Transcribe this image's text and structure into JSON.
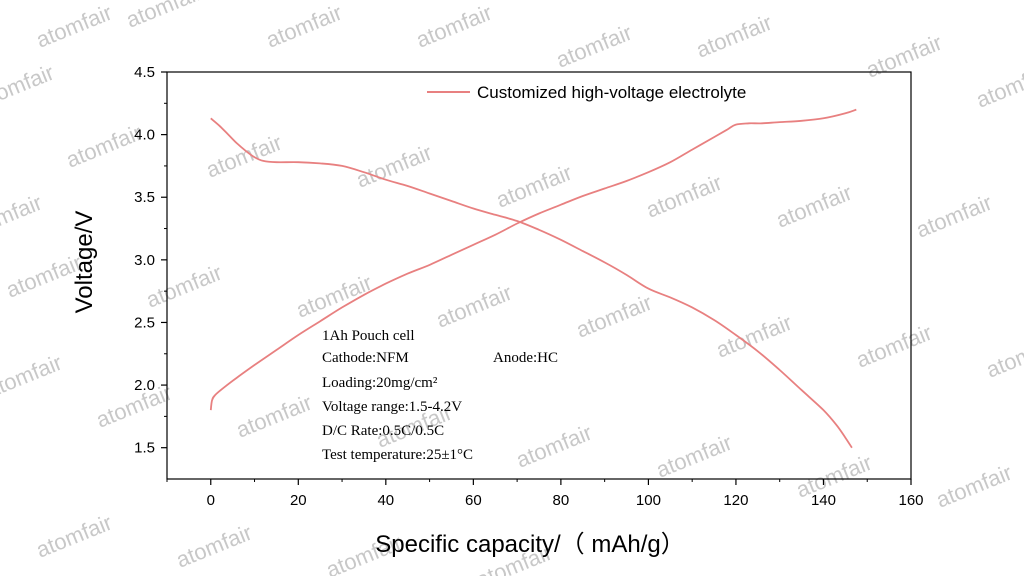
{
  "chart_data": {
    "type": "line",
    "xlabel": "Specific capacity/（ mAh/g）",
    "ylabel": "Voltage/V",
    "xlim": [
      -10,
      160
    ],
    "ylim": [
      1.25,
      4.5
    ],
    "x_ticks": [
      "0",
      "20",
      "40",
      "60",
      "80",
      "100",
      "120",
      "140",
      "160"
    ],
    "y_ticks": [
      "1.5",
      "2.0",
      "2.5",
      "3.0",
      "3.5",
      "4.0",
      "4.5"
    ],
    "legend": {
      "position": "top-right",
      "entries": [
        "Customized high-voltage electrolyte"
      ]
    },
    "series": [
      {
        "name": "Customized high-voltage electrolyte",
        "color": "#e88080",
        "segments": [
          {
            "label": "charge",
            "x": [
              0,
              0.3,
              1,
              3,
              6,
              10,
              15,
              20,
              25,
              30,
              35,
              40,
              45,
              50,
              55,
              60,
              65,
              70,
              75,
              80,
              85,
              90,
              95,
              100,
              105,
              110,
              115,
              118,
              120,
              123,
              126,
              130,
              135,
              140,
              145,
              147.5
            ],
            "y": [
              1.8,
              1.88,
              1.92,
              1.98,
              2.06,
              2.16,
              2.28,
              2.4,
              2.51,
              2.62,
              2.72,
              2.81,
              2.89,
              2.96,
              3.04,
              3.12,
              3.2,
              3.29,
              3.37,
              3.44,
              3.51,
              3.57,
              3.63,
              3.7,
              3.78,
              3.88,
              3.98,
              4.04,
              4.08,
              4.09,
              4.09,
              4.1,
              4.11,
              4.13,
              4.17,
              4.2
            ]
          },
          {
            "label": "discharge",
            "x": [
              0,
              2,
              4,
              6,
              8,
              10,
              12,
              15,
              20,
              25,
              30,
              35,
              40,
              45,
              50,
              55,
              60,
              65,
              70,
              75,
              80,
              85,
              90,
              95,
              100,
              105,
              110,
              115,
              120,
              125,
              130,
              135,
              140,
              143,
              145,
              146.5
            ],
            "y": [
              4.13,
              4.07,
              4.0,
              3.93,
              3.87,
              3.82,
              3.79,
              3.78,
              3.78,
              3.77,
              3.75,
              3.7,
              3.64,
              3.59,
              3.53,
              3.47,
              3.41,
              3.36,
              3.31,
              3.24,
              3.16,
              3.07,
              2.98,
              2.88,
              2.77,
              2.7,
              2.62,
              2.52,
              2.4,
              2.27,
              2.12,
              1.96,
              1.8,
              1.68,
              1.58,
              1.5
            ]
          }
        ]
      }
    ],
    "annotation_lines": [
      "1Ah Pouch cell",
      "Cathode:NFM",
      "Anode:HC",
      "Loading:20mg/cm²",
      "Voltage range:1.5-4.2V",
      "D/C Rate:0.5C/0.5C",
      "Test temperature:25±1°C"
    ],
    "grid": false
  },
  "watermark": "atomfair"
}
